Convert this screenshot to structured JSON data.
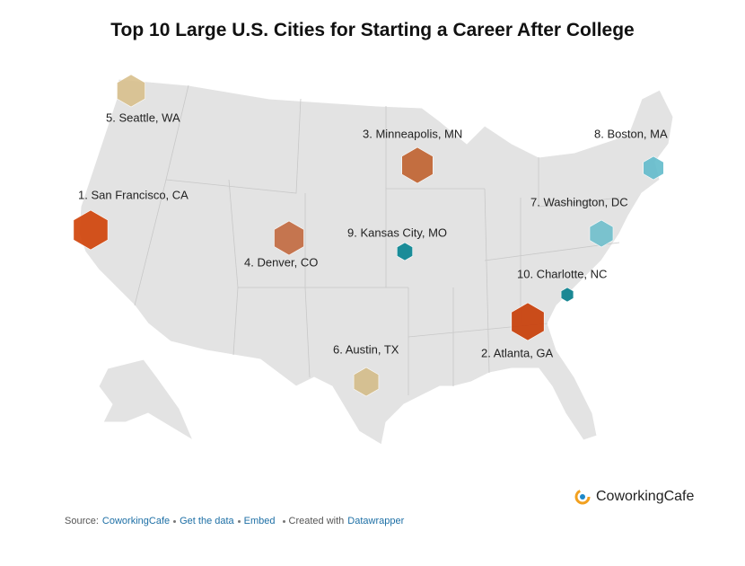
{
  "header": {
    "title": "Top 10 Large U.S. Cities for Starting a Career After College"
  },
  "map": {
    "labels": [
      "5. Seattle, WA",
      "3. Minneapolis, MN",
      "8. Boston, MA",
      "1. San Francisco, CA",
      "7. Washington, DC",
      "9. Kansas City, MO",
      "4. Denver, CO",
      "10. Charlotte, NC",
      "6. Austin, TX",
      "2. Atlanta, GA"
    ]
  },
  "logo": {
    "text": "CoworkingCafe"
  },
  "footer": {
    "source_label": "Source:",
    "source_link": "CoworkingCafe",
    "data_link": "Get the data",
    "embed_link": "Embed",
    "created_label": "Created with",
    "tool_link": "Datawrapper"
  }
}
